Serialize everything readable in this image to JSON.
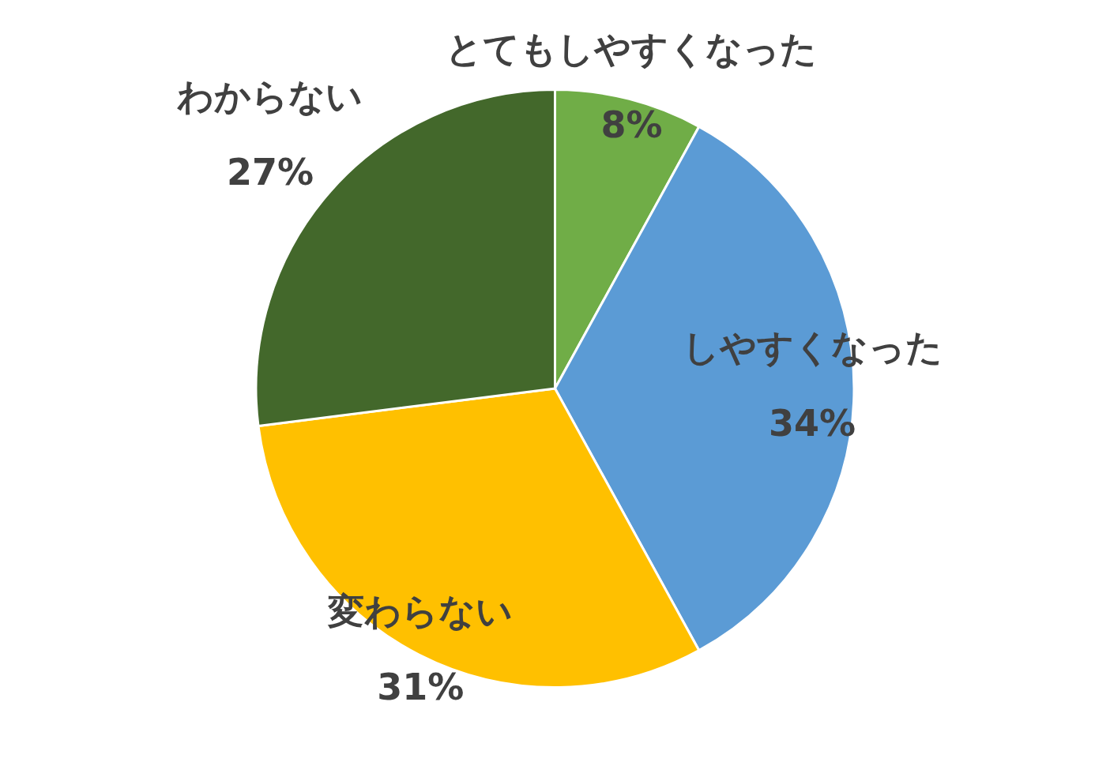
{
  "chart_data": {
    "type": "pie",
    "categories": [
      "とてもしやすくなった",
      "しやすくなった",
      "変わらない",
      "わからない"
    ],
    "values": [
      8,
      34,
      31,
      27
    ],
    "colors": [
      "#70ad47",
      "#5b9bd5",
      "#ffc000",
      "#43682b"
    ],
    "value_labels": [
      "8%",
      "34%",
      "31%",
      "27%"
    ],
    "legend": false
  }
}
